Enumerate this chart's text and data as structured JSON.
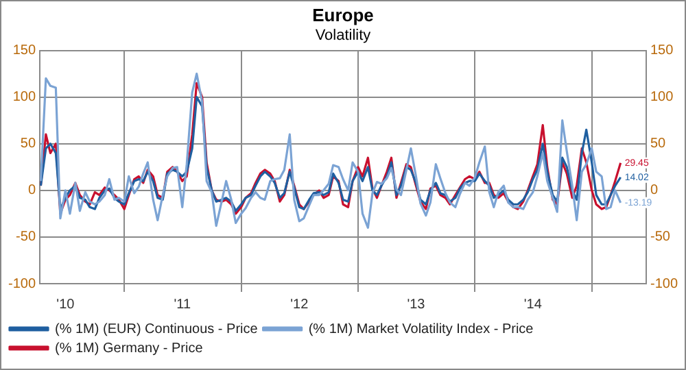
{
  "chart_data": {
    "type": "line",
    "title": "Europe",
    "subtitle": "Volatility",
    "x": [
      "2010-04-15",
      "2010-05-01",
      "2010-05-15",
      "2010-06-01",
      "2010-06-15",
      "2010-07-01",
      "2010-07-15",
      "2010-08-01",
      "2010-08-15",
      "2010-09-01",
      "2010-09-15",
      "2010-10-01",
      "2010-10-15",
      "2010-11-01",
      "2010-11-15",
      "2010-12-01",
      "2010-12-15",
      "2011-01-01",
      "2011-01-15",
      "2011-02-01",
      "2011-02-15",
      "2011-03-01",
      "2011-03-15",
      "2011-04-01",
      "2011-04-15",
      "2011-05-01",
      "2011-05-15",
      "2011-06-01",
      "2011-06-15",
      "2011-07-01",
      "2011-07-15",
      "2011-08-01",
      "2011-08-15",
      "2011-09-01",
      "2011-09-15",
      "2011-10-01",
      "2011-10-15",
      "2011-11-01",
      "2011-11-15",
      "2011-12-01",
      "2011-12-15",
      "2012-01-01",
      "2012-01-15",
      "2012-02-01",
      "2012-02-15",
      "2012-03-01",
      "2012-03-15",
      "2012-04-01",
      "2012-04-15",
      "2012-05-01",
      "2012-05-15",
      "2012-06-01",
      "2012-06-15",
      "2012-07-01",
      "2012-07-15",
      "2012-08-01",
      "2012-08-15",
      "2012-09-01",
      "2012-09-15",
      "2012-10-01",
      "2012-10-15",
      "2012-11-01",
      "2012-11-15",
      "2012-12-01",
      "2012-12-15",
      "2013-01-01",
      "2013-01-15",
      "2013-02-01",
      "2013-02-15",
      "2013-03-01",
      "2013-03-15",
      "2013-04-01",
      "2013-04-15",
      "2013-05-01",
      "2013-05-15",
      "2013-06-01",
      "2013-06-15",
      "2013-07-01",
      "2013-07-15",
      "2013-08-01",
      "2013-08-15",
      "2013-09-01",
      "2013-09-15",
      "2013-10-01",
      "2013-10-15",
      "2013-11-01",
      "2013-11-15",
      "2013-12-01",
      "2013-12-15",
      "2014-01-01",
      "2014-01-15",
      "2014-02-01",
      "2014-02-15",
      "2014-03-01",
      "2014-03-15",
      "2014-04-01",
      "2014-04-15",
      "2014-05-01",
      "2014-05-15",
      "2014-06-01",
      "2014-06-15",
      "2014-07-01",
      "2014-07-15",
      "2014-08-01",
      "2014-08-15",
      "2014-09-01",
      "2014-09-15",
      "2014-10-01",
      "2014-10-15",
      "2014-11-01",
      "2014-11-15",
      "2014-12-01",
      "2014-12-15",
      "2015-01-01",
      "2015-01-15",
      "2015-02-01",
      "2015-02-15",
      "2015-03-01",
      "2015-03-15",
      "2015-04-01"
    ],
    "series": [
      {
        "name": "(% 1M) (EUR) Continuous - Price",
        "color": "#1f5fa0",
        "values": [
          5,
          45,
          50,
          40,
          -20,
          -8,
          0,
          5,
          -8,
          -10,
          -18,
          -20,
          -8,
          0,
          2,
          -8,
          -12,
          -15,
          -3,
          10,
          12,
          10,
          20,
          10,
          -8,
          -10,
          18,
          22,
          20,
          15,
          20,
          45,
          100,
          90,
          25,
          0,
          -12,
          -10,
          -8,
          -12,
          -22,
          -15,
          -8,
          -5,
          5,
          15,
          20,
          15,
          8,
          -8,
          -3,
          20,
          3,
          -18,
          -20,
          -10,
          -3,
          -2,
          -5,
          -2,
          18,
          8,
          -10,
          -12,
          10,
          20,
          10,
          25,
          0,
          -5,
          5,
          15,
          30,
          -5,
          5,
          25,
          22,
          8,
          -10,
          -15,
          0,
          8,
          -3,
          -5,
          -12,
          -8,
          2,
          8,
          10,
          10,
          18,
          10,
          5,
          -8,
          -5,
          0,
          -10,
          -15,
          -15,
          -10,
          -2,
          12,
          22,
          50,
          20,
          -5,
          -12,
          35,
          25,
          0,
          -10,
          40,
          65,
          30,
          -5,
          -15,
          -15,
          -5,
          5,
          14.02
        ],
        "value_labels": [
          null,
          null,
          null,
          null,
          null,
          null,
          null,
          null,
          null,
          null,
          null,
          null,
          null,
          null,
          null,
          null,
          null,
          null,
          null,
          null,
          null,
          null,
          null,
          null,
          null,
          null,
          null,
          null,
          null,
          null,
          null,
          null,
          null,
          null,
          null,
          null,
          null,
          null,
          null,
          null,
          null,
          null,
          null,
          null,
          null,
          null,
          null,
          null,
          null,
          null,
          null,
          null,
          null,
          null,
          null,
          null,
          null,
          null,
          null,
          null,
          null,
          null,
          null,
          null,
          null,
          null,
          null,
          null,
          null,
          null,
          null,
          null,
          null,
          null,
          null,
          null,
          null,
          null,
          null,
          null,
          null,
          null,
          null,
          null,
          null,
          null,
          null,
          null,
          null,
          null,
          null,
          null,
          null,
          null,
          null,
          null,
          null,
          null,
          null,
          null,
          null,
          null,
          null,
          null,
          null,
          null,
          null,
          null,
          null,
          null,
          null,
          null,
          null,
          null,
          null,
          null,
          null,
          null,
          null,
          "14.02"
        ]
      },
      {
        "name": "(% 1M) Market Volatility Index - Price",
        "color": "#7ba3d4",
        "values": [
          10,
          120,
          112,
          110,
          -30,
          0,
          -25,
          8,
          -22,
          -2,
          -12,
          -15,
          -12,
          -5,
          12,
          -10,
          -8,
          -12,
          15,
          -3,
          4,
          18,
          30,
          -10,
          -32,
          -5,
          15,
          24,
          25,
          -18,
          28,
          105,
          125,
          95,
          10,
          -2,
          -38,
          -12,
          10,
          -10,
          -35,
          -25,
          -19,
          -8,
          -2,
          -8,
          -10,
          10,
          12,
          13,
          22,
          60,
          -10,
          -33,
          -30,
          -16,
          -5,
          -5,
          0,
          7,
          27,
          25,
          12,
          0,
          30,
          20,
          -25,
          -40,
          -3,
          9,
          7,
          13,
          24,
          1,
          -5,
          22,
          45,
          15,
          -14,
          -27,
          -13,
          28,
          13,
          -3,
          -13,
          -18,
          -4,
          8,
          5,
          14,
          30,
          47,
          -2,
          -18,
          -2,
          5,
          -13,
          -18,
          -18,
          -20,
          -10,
          -2,
          15,
          40,
          10,
          -8,
          -23,
          75,
          42,
          5,
          -32,
          20,
          28,
          45,
          20,
          15,
          -20,
          -18,
          0,
          -13.19
        ],
        "value_labels": [
          null,
          null,
          null,
          null,
          null,
          null,
          null,
          null,
          null,
          null,
          null,
          null,
          null,
          null,
          null,
          null,
          null,
          null,
          null,
          null,
          null,
          null,
          null,
          null,
          null,
          null,
          null,
          null,
          null,
          null,
          null,
          null,
          null,
          null,
          null,
          null,
          null,
          null,
          null,
          null,
          null,
          null,
          null,
          null,
          null,
          null,
          null,
          null,
          null,
          null,
          null,
          null,
          null,
          null,
          null,
          null,
          null,
          null,
          null,
          null,
          null,
          null,
          null,
          null,
          null,
          null,
          null,
          null,
          null,
          null,
          null,
          null,
          null,
          null,
          null,
          null,
          null,
          null,
          null,
          null,
          null,
          null,
          null,
          null,
          null,
          null,
          null,
          null,
          null,
          null,
          null,
          null,
          null,
          null,
          null,
          null,
          null,
          null,
          null,
          null,
          null,
          null,
          null,
          null,
          null,
          null,
          null,
          null,
          null,
          null,
          null,
          null,
          null,
          null,
          null,
          null,
          null,
          null,
          null,
          "-13.19"
        ]
      },
      {
        "name": "(% 1M) Germany - Price",
        "color": "#c8102e",
        "values": [
          5,
          60,
          40,
          50,
          -25,
          -10,
          -5,
          8,
          -5,
          -12,
          -15,
          -2,
          -5,
          3,
          0,
          -5,
          -10,
          -20,
          -5,
          12,
          15,
          8,
          22,
          15,
          -5,
          -8,
          20,
          25,
          20,
          10,
          15,
          60,
          115,
          100,
          30,
          0,
          -10,
          -12,
          -10,
          -15,
          -25,
          -18,
          -8,
          -3,
          8,
          18,
          22,
          18,
          10,
          -12,
          -5,
          22,
          5,
          -15,
          -20,
          -12,
          -5,
          0,
          -8,
          -5,
          15,
          10,
          -15,
          -18,
          10,
          25,
          15,
          35,
          2,
          -8,
          5,
          20,
          35,
          -8,
          8,
          28,
          25,
          5,
          -12,
          -20,
          2,
          5,
          -5,
          -8,
          -15,
          -5,
          3,
          12,
          15,
          12,
          20,
          8,
          8,
          -5,
          -8,
          -3,
          -12,
          -18,
          -20,
          -12,
          0,
          15,
          28,
          70,
          25,
          -10,
          -15,
          30,
          18,
          -8,
          5,
          45,
          30,
          0,
          -15,
          -20,
          -18,
          -5,
          10,
          29.45
        ],
        "value_labels": [
          null,
          null,
          null,
          null,
          null,
          null,
          null,
          null,
          null,
          null,
          null,
          null,
          null,
          null,
          null,
          null,
          null,
          null,
          null,
          null,
          null,
          null,
          null,
          null,
          null,
          null,
          null,
          null,
          null,
          null,
          null,
          null,
          null,
          null,
          null,
          null,
          null,
          null,
          null,
          null,
          null,
          null,
          null,
          null,
          null,
          null,
          null,
          null,
          null,
          null,
          null,
          null,
          null,
          null,
          null,
          null,
          null,
          null,
          null,
          null,
          null,
          null,
          null,
          null,
          null,
          null,
          null,
          null,
          null,
          null,
          null,
          null,
          null,
          null,
          null,
          null,
          null,
          null,
          null,
          null,
          null,
          null,
          null,
          null,
          null,
          null,
          null,
          null,
          null,
          null,
          null,
          null,
          null,
          null,
          null,
          null,
          null,
          null,
          null,
          null,
          null,
          null,
          null,
          null,
          null,
          null,
          null,
          null,
          null,
          null,
          null,
          null,
          null,
          null,
          null,
          null,
          null,
          null,
          null,
          "29.45"
        ]
      }
    ],
    "xlim": [
      "2010-04-12",
      "2015-06-20"
    ],
    "xticks": [
      {
        "value": "2010-07-01",
        "label": "'10"
      },
      {
        "value": "2011-01-01",
        "label": null
      },
      {
        "value": "2011-07-01",
        "label": "'11"
      },
      {
        "value": "2012-01-01",
        "label": null
      },
      {
        "value": "2012-07-01",
        "label": "'12"
      },
      {
        "value": "2013-01-01",
        "label": null
      },
      {
        "value": "2013-07-01",
        "label": "'13"
      },
      {
        "value": "2014-01-01",
        "label": null
      },
      {
        "value": "2014-07-01",
        "label": "'14"
      },
      {
        "value": "2015-01-01",
        "label": null
      }
    ],
    "ylim": [
      -100,
      150
    ],
    "yticks": [
      -100,
      -50,
      0,
      50,
      100,
      150
    ],
    "y2lim": [
      -100,
      150
    ],
    "y2ticks": [
      -100,
      -50,
      0,
      50,
      100,
      150
    ],
    "grid": true,
    "legend": "bottom",
    "marker": "none",
    "line_style": "solid"
  }
}
